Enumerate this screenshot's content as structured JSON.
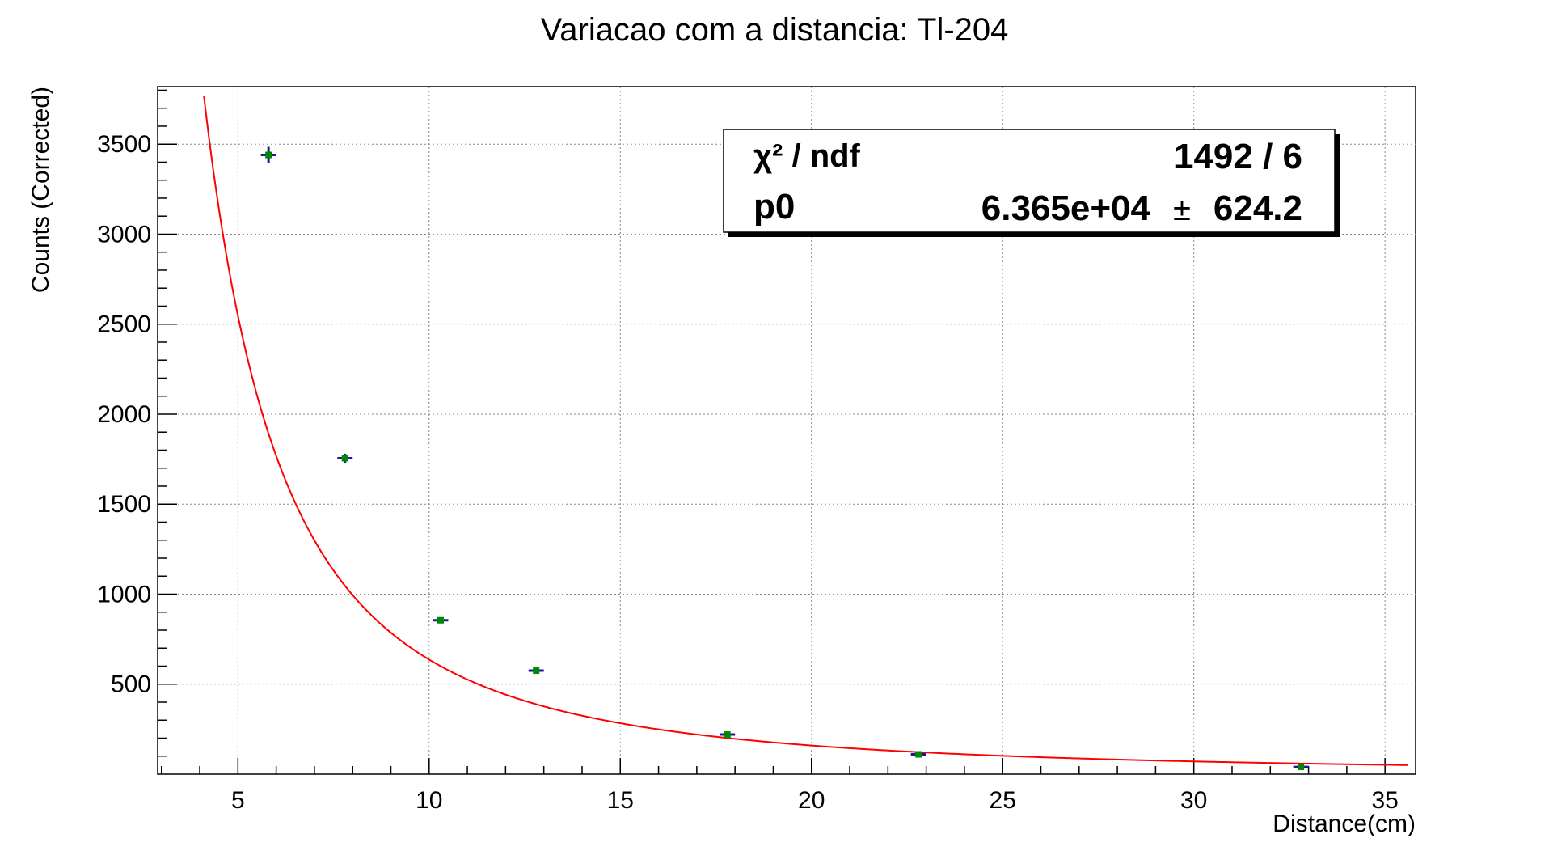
{
  "chart_data": {
    "type": "scatter",
    "title": "Variacao com a distancia: Tl-204",
    "xlabel": "Distance(cm)",
    "ylabel": "Counts (Corrected)",
    "xlim": [
      2.9,
      35.8
    ],
    "ylim": [
      0,
      3820
    ],
    "x_ticks": [
      5,
      10,
      15,
      20,
      25,
      30,
      35
    ],
    "y_ticks": [
      500,
      1000,
      1500,
      2000,
      2500,
      3000,
      3500
    ],
    "grid": true,
    "series": [
      {
        "x": [
          5.8,
          7.8,
          10.3,
          12.8,
          17.8,
          22.8,
          32.8
        ],
        "y": [
          3440,
          1755,
          855,
          575,
          220,
          110,
          40
        ],
        "yerr": [
          45,
          25,
          12,
          10,
          7,
          5,
          4
        ],
        "xerr": [
          0.2,
          0.2,
          0.2,
          0.2,
          0.2,
          0.2,
          0.2
        ],
        "marker_color": "#008800",
        "error_color": "#1a1a99"
      }
    ],
    "fit": {
      "function": "p0/x^2",
      "p0": 63650,
      "x_range": [
        3.9,
        35.6
      ],
      "color": "#ff0000"
    },
    "stats_box": {
      "row1_label": "χ² / ndf",
      "row1_value": "1492 / 6",
      "row2_label": "p0",
      "row2_value": "6.365e+04",
      "row2_pm": "±",
      "row2_err": "624.2"
    }
  }
}
